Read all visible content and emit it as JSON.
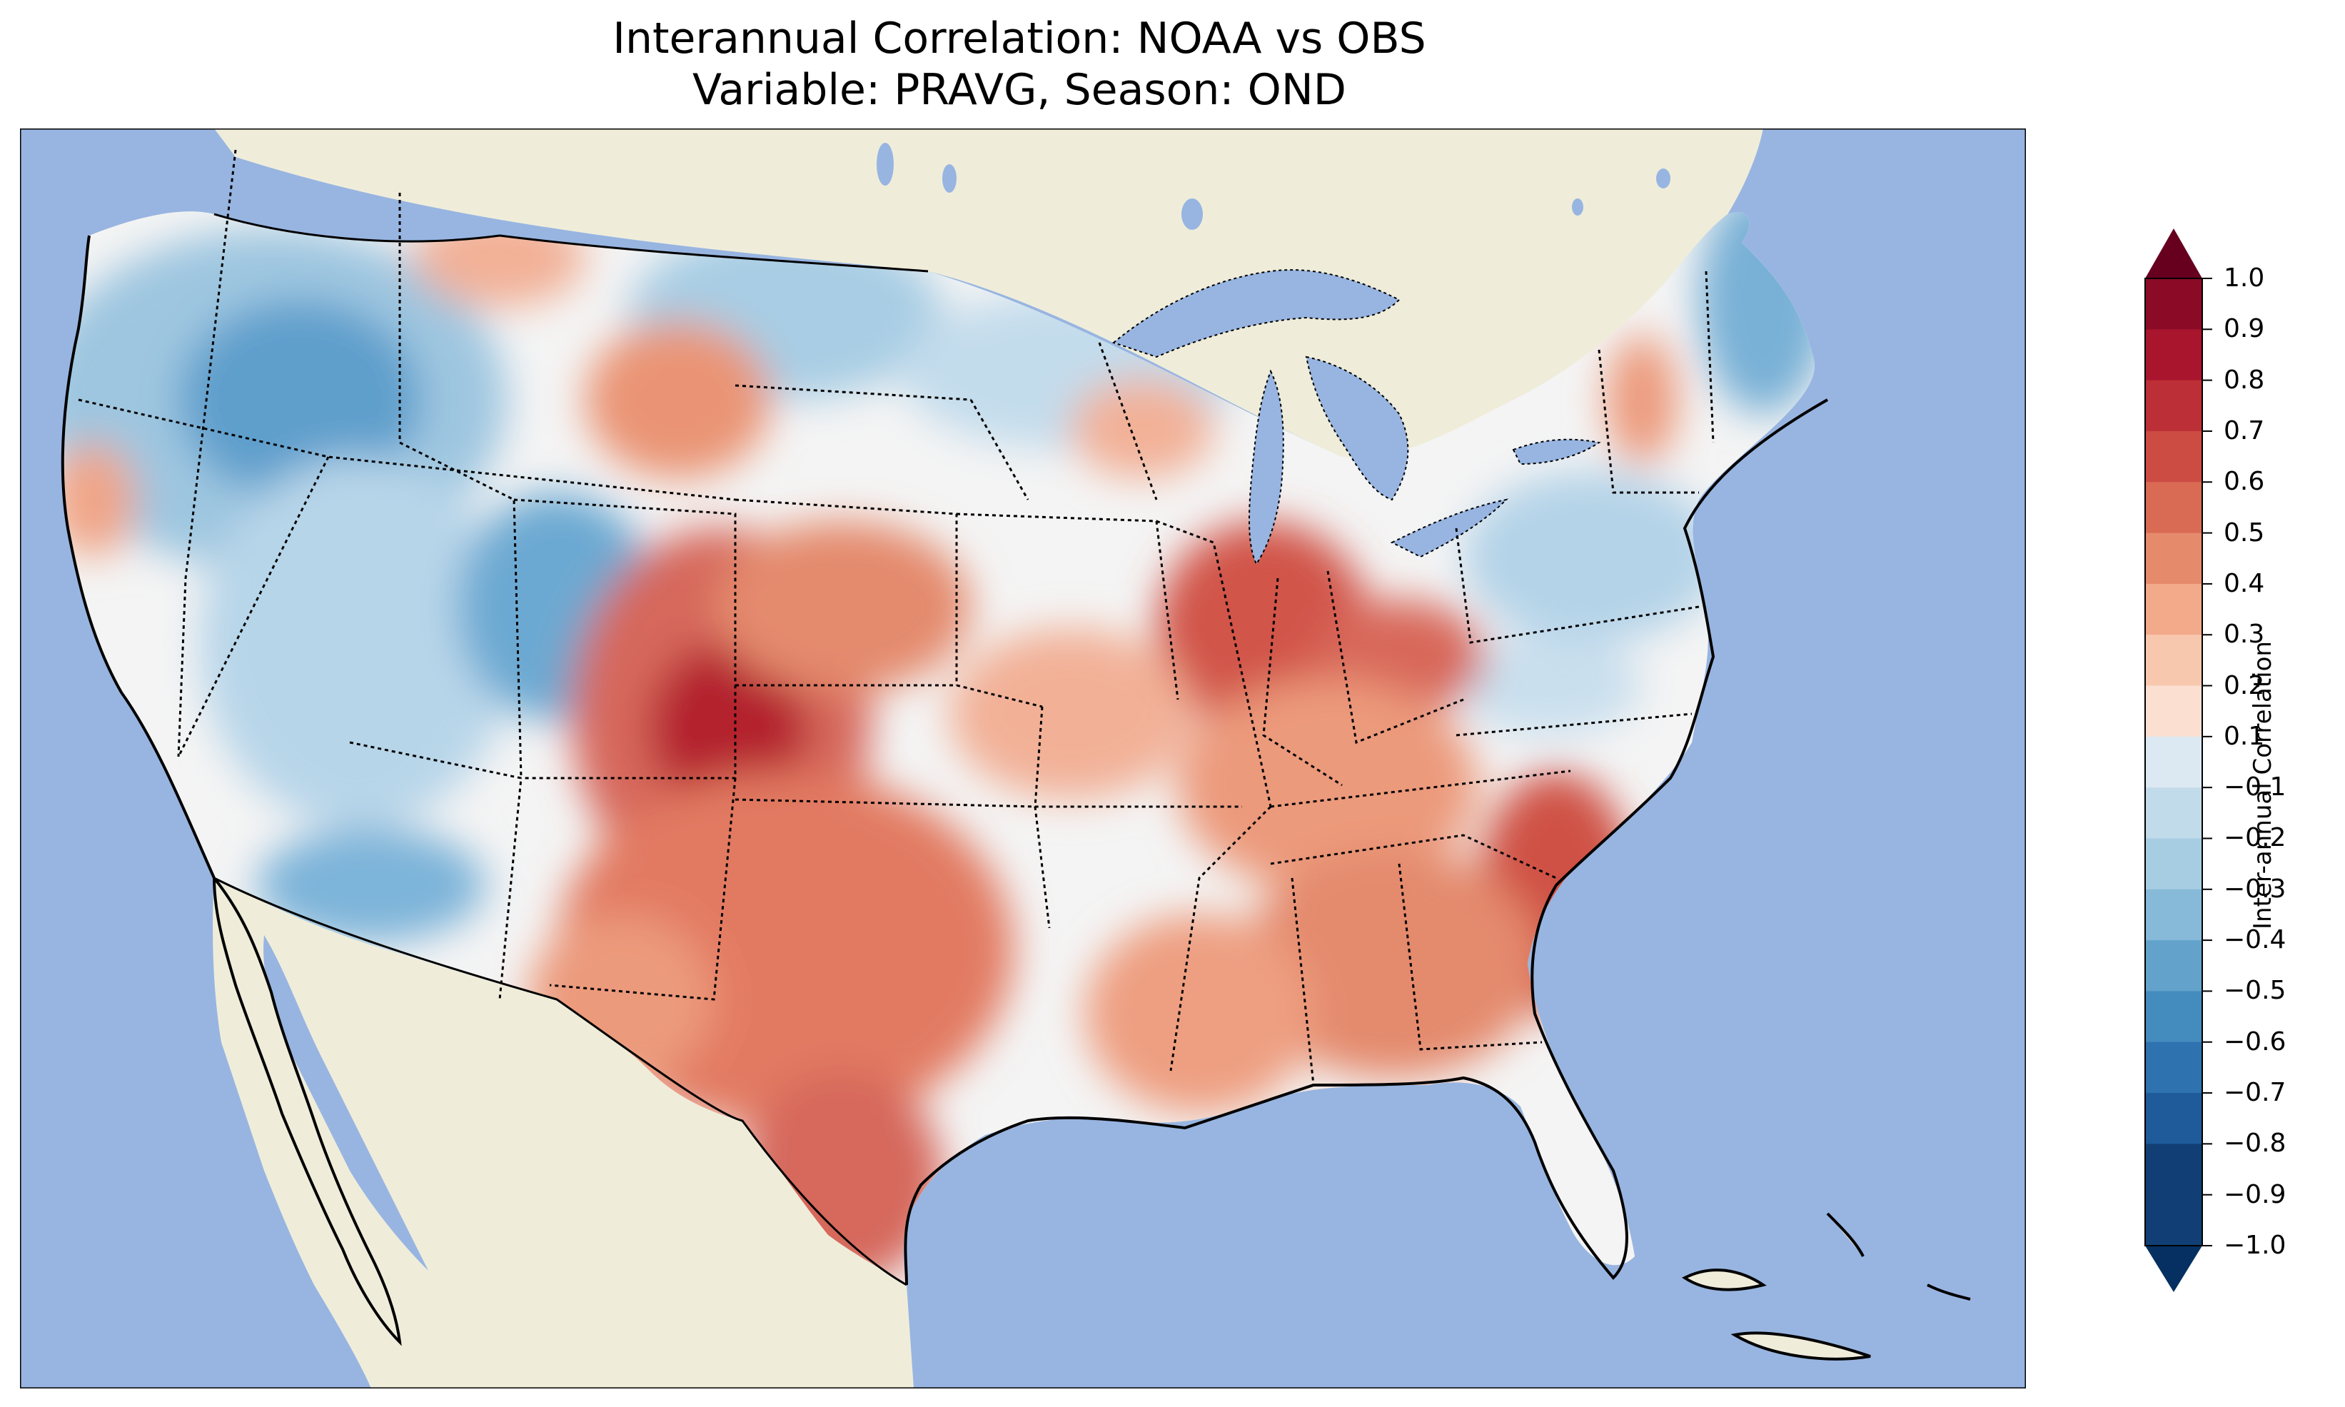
{
  "title": {
    "line1": "Interannual Correlation: NOAA vs OBS",
    "line2": "Variable: PRAVG, Season: OND"
  },
  "map": {
    "projection": "lambert-conformal",
    "region": "contiguous-united-states",
    "features": [
      "coastlines",
      "state-borders",
      "country-borders",
      "lakes",
      "ocean",
      "land"
    ],
    "colors": {
      "ocean": "#98b5e1",
      "land": "#efedda",
      "lakes": "#98b5e1"
    },
    "field_description_regions": [
      {
        "region": "Colorado / New Mexico / Texas",
        "value": 0.7
      },
      {
        "region": "Southeast / Carolinas",
        "value": 0.6
      },
      {
        "region": "Ohio Valley",
        "value": 0.6
      },
      {
        "region": "Northwest / Great Basin",
        "value": -0.5
      },
      {
        "region": "Northern Maine",
        "value": -0.5
      }
    ]
  },
  "colorbar": {
    "label": "Inter-annual Correlation",
    "colormap": "RdBu_r",
    "extend": "both",
    "ticks": [
      "1.0",
      "0.9",
      "0.8",
      "0.7",
      "0.6",
      "0.5",
      "0.4",
      "0.3",
      "0.2",
      "0.1",
      "−0.1",
      "−0.2",
      "−0.3",
      "−0.4",
      "−0.5",
      "−0.6",
      "−0.7",
      "−0.8",
      "−0.9",
      "−1.0"
    ],
    "levels": [
      1.0,
      0.9,
      0.8,
      0.7,
      0.6,
      0.5,
      0.4,
      0.3,
      0.2,
      0.1,
      -0.1,
      -0.2,
      -0.3,
      -0.4,
      -0.5,
      -0.6,
      -0.7,
      -0.8,
      -0.9,
      -1.0
    ],
    "colors": [
      "#67001f",
      "#8b0a26",
      "#a8152d",
      "#bd2f36",
      "#cc4c43",
      "#d96a54",
      "#e68a6c",
      "#f2aa8a",
      "#f8c8ae",
      "#fbe0d2",
      "#f7f7f7",
      "#dde9f2",
      "#c2dbea",
      "#a7cde2",
      "#86bad8",
      "#63a3cb",
      "#448bbe",
      "#2e72b0",
      "#1f5a9a",
      "#113f75",
      "#053061"
    ]
  }
}
